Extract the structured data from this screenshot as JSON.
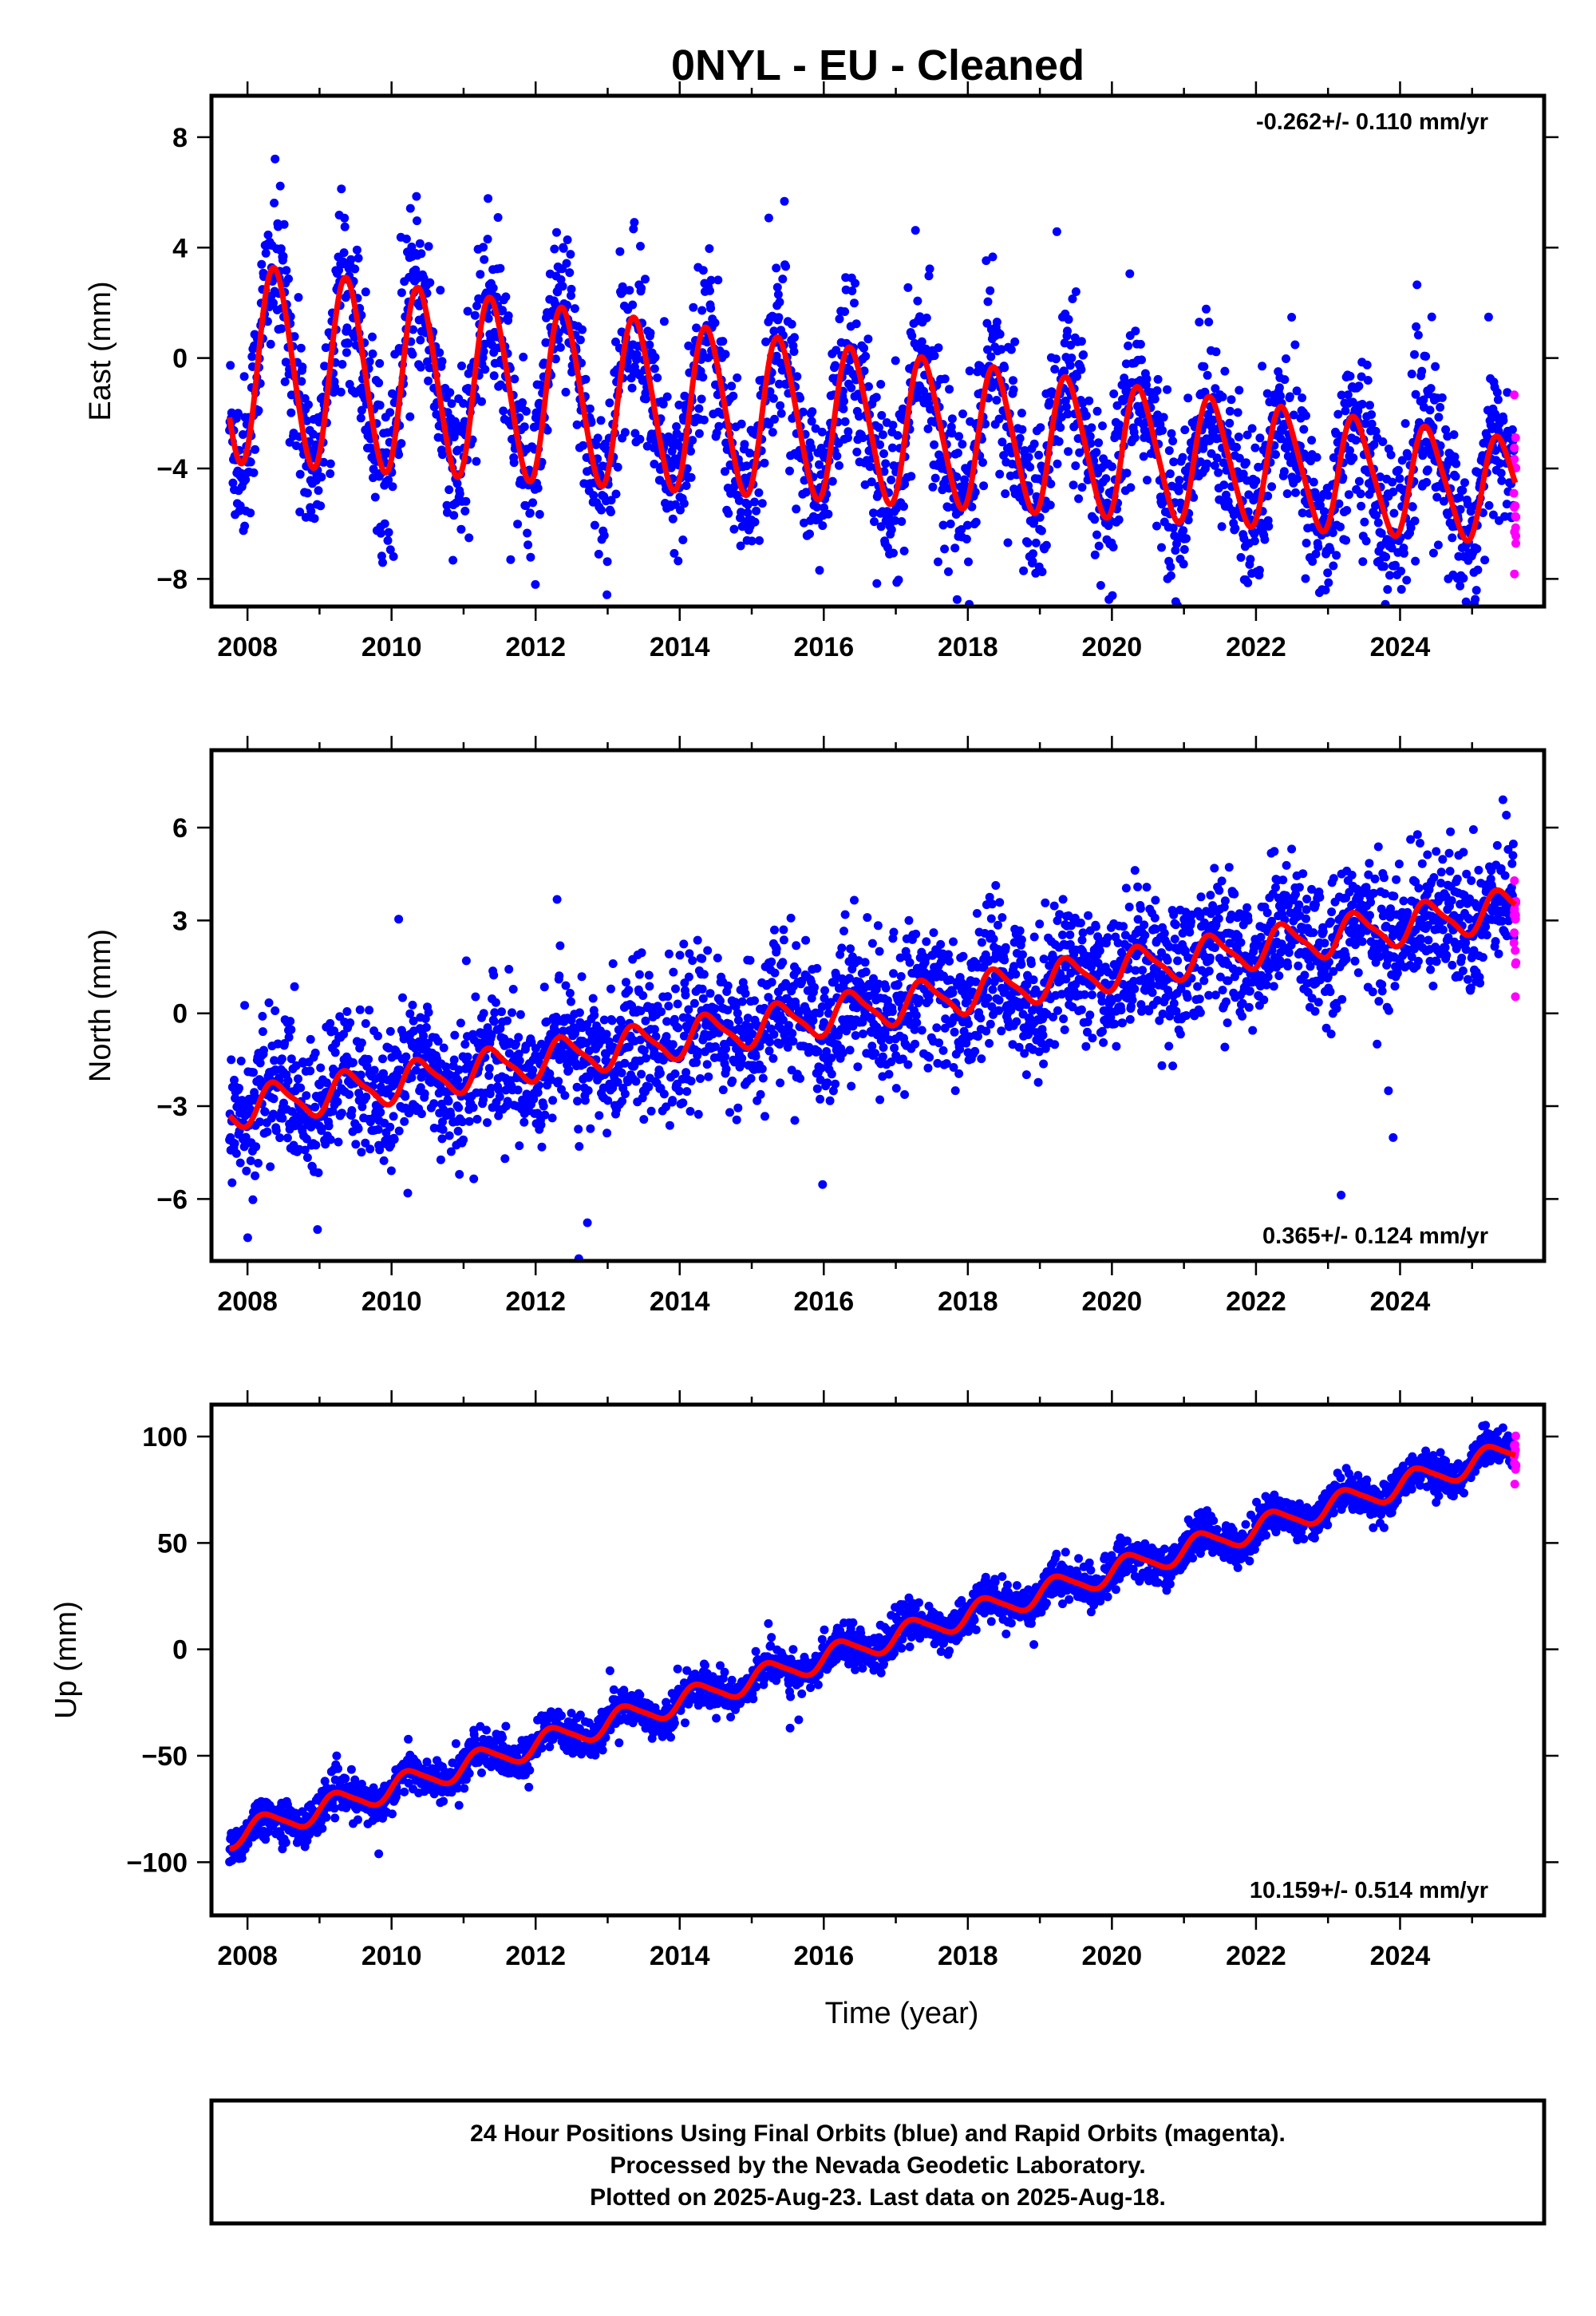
{
  "title": "0NYL  - EU - Cleaned",
  "chart_data": [
    {
      "type": "scatter",
      "panel": "east",
      "ylabel": "East (mm)",
      "xlabel": "",
      "xlim": [
        2007.5,
        2026.0
      ],
      "ylim": [
        -9,
        9.5
      ],
      "xticks": [
        2008,
        2010,
        2012,
        2014,
        2016,
        2018,
        2020,
        2022,
        2024
      ],
      "yticks": [
        -8,
        -4,
        0,
        4,
        8
      ],
      "ytick_labels": [
        "−8",
        "−4",
        "0",
        "4",
        "8"
      ],
      "rate": "-0.262+/- 0.110 mm/yr",
      "rate_position": "top-right",
      "model": {
        "start": 2007.75,
        "end": 2025.6,
        "offset": -0.15,
        "slope": -0.262,
        "amplitude": 3.6,
        "amplitude_trend": -0.1,
        "phase": 0.14,
        "amplitude2": 0.3,
        "noise": 1.5
      },
      "series": [
        {
          "name": "Final Orbits",
          "color": "#0000ff"
        },
        {
          "name": "Rapid Orbits",
          "color": "#ff00ff"
        },
        {
          "name": "Model fit",
          "color": "#ff0000"
        }
      ]
    },
    {
      "type": "scatter",
      "panel": "north",
      "ylabel": "North (mm)",
      "xlabel": "",
      "xlim": [
        2007.5,
        2026.0
      ],
      "ylim": [
        -8,
        8.5
      ],
      "xticks": [
        2008,
        2010,
        2012,
        2014,
        2016,
        2018,
        2020,
        2022,
        2024
      ],
      "yticks": [
        -6,
        -3,
        0,
        3,
        6
      ],
      "ytick_labels": [
        "−6",
        "−3",
        "0",
        "3",
        "6"
      ],
      "rate": "0.365+/- 0.124 mm/yr",
      "rate_position": "bottom-right",
      "model": {
        "start": 2007.75,
        "end": 2025.6,
        "offset": -3.1,
        "slope": 0.365,
        "amplitude": 0.6,
        "amplitude_trend": 0,
        "phase": 0.15,
        "amplitude2": 0.15,
        "noise": 1.1
      },
      "series": [
        {
          "name": "Final Orbits",
          "color": "#0000ff"
        },
        {
          "name": "Rapid Orbits",
          "color": "#ff00ff"
        },
        {
          "name": "Model fit",
          "color": "#ff0000"
        }
      ]
    },
    {
      "type": "scatter",
      "panel": "up",
      "ylabel": "Up (mm)",
      "xlabel": "Time (year)",
      "xlim": [
        2007.5,
        2026.0
      ],
      "ylim": [
        -125,
        115
      ],
      "xticks": [
        2008,
        2010,
        2012,
        2014,
        2016,
        2018,
        2020,
        2022,
        2024
      ],
      "yticks": [
        -100,
        -50,
        0,
        50,
        100
      ],
      "ytick_labels": [
        "−100",
        "−50",
        "0",
        "50",
        "100"
      ],
      "rate": "10.159+/- 0.514 mm/yr",
      "rate_position": "bottom-right",
      "model": {
        "start": 2007.75,
        "end": 2025.6,
        "offset": -88,
        "slope": 10.159,
        "amplitude": 5.5,
        "amplitude_trend": 0,
        "phase": 0.0,
        "amplitude2": 1.0,
        "noise": 4.5
      },
      "series": [
        {
          "name": "Final Orbits",
          "color": "#0000ff"
        },
        {
          "name": "Rapid Orbits",
          "color": "#ff00ff"
        },
        {
          "name": "Model fit",
          "color": "#ff0000"
        }
      ]
    }
  ],
  "footer": {
    "line1": "24 Hour Positions Using Final Orbits (blue) and Rapid Orbits (magenta).",
    "line2": "Processed by the Nevada Geodetic Laboratory.",
    "line3": "Plotted on 2025-Aug-23. Last data on 2025-Aug-18."
  }
}
